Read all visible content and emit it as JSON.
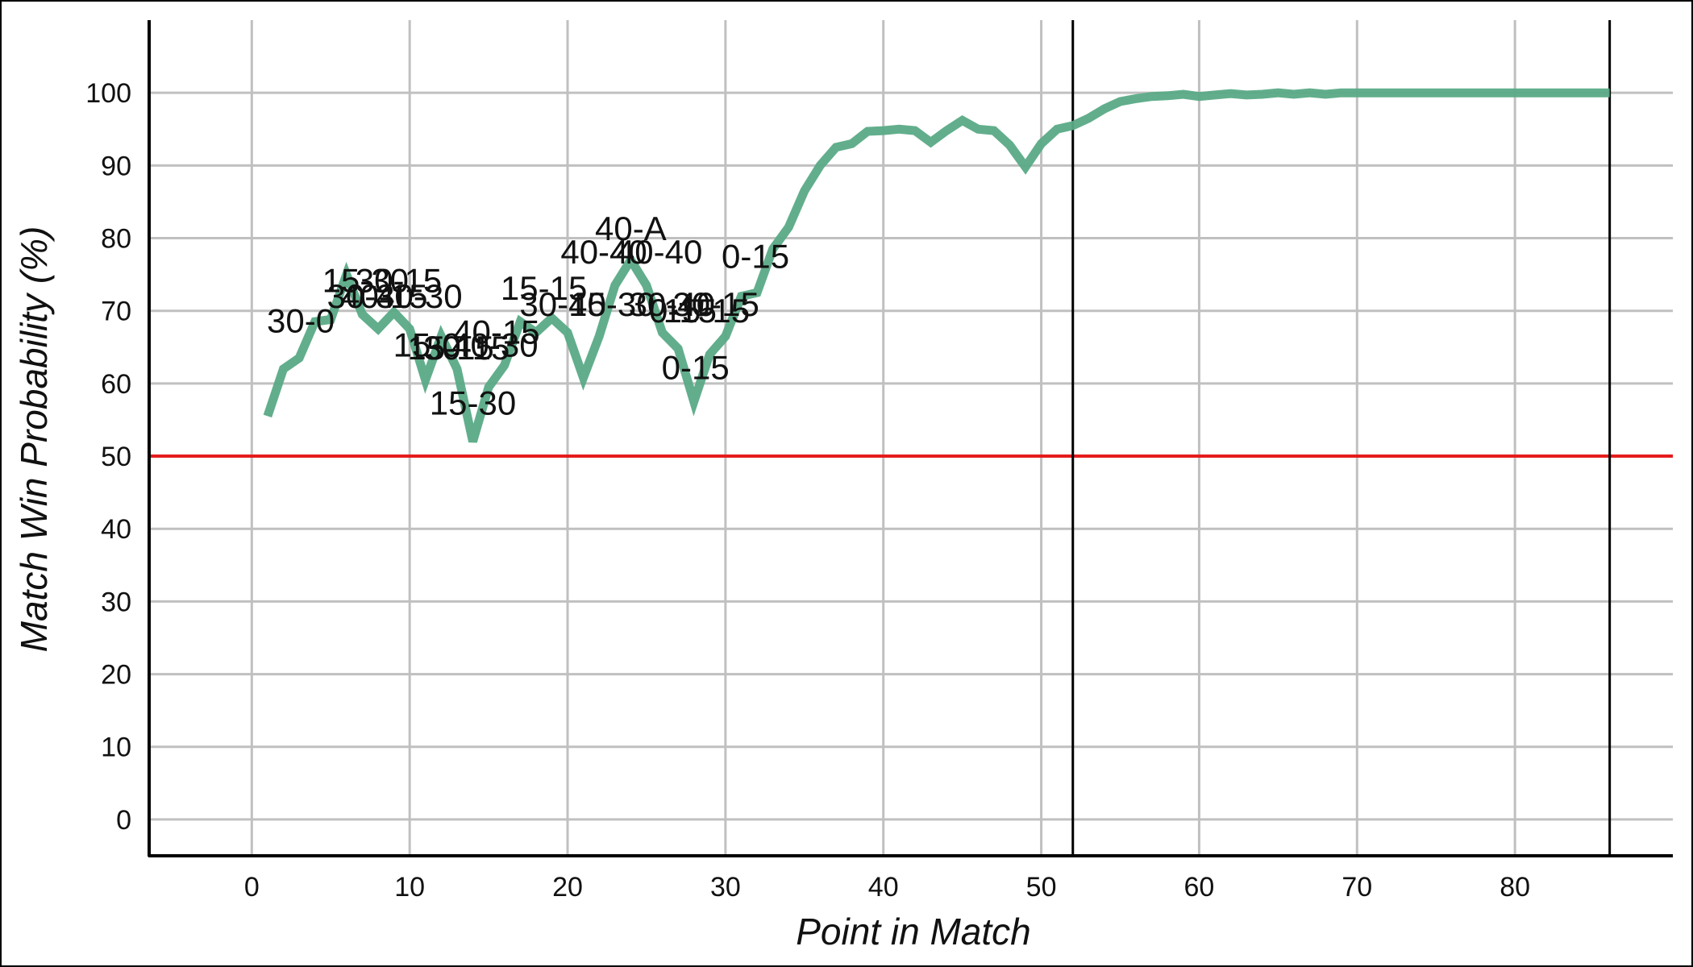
{
  "chart_data": {
    "type": "line",
    "title": "",
    "xlabel": "Point in Match",
    "ylabel": "Match Win Probability (%)",
    "xlim": [
      -6.5,
      90
    ],
    "ylim": [
      -5,
      110
    ],
    "xticks": [
      0,
      10,
      20,
      30,
      40,
      50,
      60,
      70,
      80
    ],
    "yticks": [
      0,
      10,
      20,
      30,
      40,
      50,
      60,
      70,
      80,
      90,
      100
    ],
    "grid": true,
    "legend": "none",
    "colors": {
      "series": "#5aaa86",
      "reference": "#e51c1c",
      "axis": "#000000",
      "grid": "#c0c0c0"
    },
    "reference_line": {
      "y": 50
    },
    "vertical_markers": [
      52,
      86
    ],
    "series": [
      {
        "x": [
          1,
          2,
          3,
          4,
          5,
          6,
          7,
          8,
          9,
          10,
          11,
          12,
          13,
          14,
          15,
          16,
          17,
          18,
          19,
          20,
          21,
          22,
          23,
          24,
          25,
          26,
          27,
          28,
          29,
          30,
          31,
          32,
          33,
          34,
          35,
          36,
          37,
          38,
          39,
          40,
          41,
          42,
          43,
          44,
          45,
          46,
          47,
          48,
          49,
          50,
          51,
          52,
          53,
          54,
          55,
          56,
          57,
          58,
          59,
          60,
          61,
          62,
          63,
          64,
          65,
          66,
          67,
          68,
          69,
          70,
          71,
          72,
          73,
          74,
          75,
          76,
          77,
          78,
          79,
          80,
          81,
          82,
          83,
          84,
          85,
          86
        ],
        "values": [
          55.5,
          62,
          63.5,
          68.5,
          68.8,
          75,
          69.5,
          67.5,
          69.8,
          67.5,
          60.5,
          66.5,
          62,
          52,
          59.5,
          62.5,
          68.5,
          67,
          69,
          67,
          60.8,
          66.5,
          73.5,
          77,
          73.5,
          67,
          64.8,
          57.5,
          64,
          66.5,
          72,
          72.5,
          78.5,
          81.5,
          86.5,
          90,
          92.5,
          93,
          94.7,
          94.8,
          95,
          94.8,
          93.2,
          94.8,
          96.2,
          95,
          94.8,
          92.8,
          89.8,
          93,
          95,
          95.5,
          96.5,
          97.8,
          98.8,
          99.2,
          99.5,
          99.6,
          99.8,
          99.5,
          99.7,
          99.9,
          99.7,
          99.8,
          100,
          99.8,
          100,
          99.8,
          100,
          100,
          100,
          100,
          100,
          100,
          100,
          100,
          100,
          100,
          100,
          100,
          100,
          100,
          100,
          100,
          100,
          100
        ]
      }
    ],
    "annotations": [
      {
        "text": "30-0",
        "x": 3.1,
        "y": 67
      },
      {
        "text": "15-30",
        "x": 7.2,
        "y": 72.6
      },
      {
        "text": "30-15",
        "x": 9.3,
        "y": 72.6
      },
      {
        "text": "30-30",
        "x": 7.5,
        "y": 70.4
      },
      {
        "text": "40-15",
        "x": 8.4,
        "y": 70.4
      },
      {
        "text": "40-30",
        "x": 10.6,
        "y": 70.4
      },
      {
        "text": "15-0",
        "x": 11.1,
        "y": 63.7
      },
      {
        "text": "15-15",
        "x": 12.6,
        "y": 63.3
      },
      {
        "text": "30-15",
        "x": 13.6,
        "y": 63.3
      },
      {
        "text": "40-15",
        "x": 15.5,
        "y": 65.5
      },
      {
        "text": "40-30",
        "x": 15.4,
        "y": 63.7
      },
      {
        "text": "15-30",
        "x": 14.0,
        "y": 55.7
      },
      {
        "text": "15-15",
        "x": 18.5,
        "y": 71.5
      },
      {
        "text": "30-15",
        "x": 19.7,
        "y": 69.3
      },
      {
        "text": "40-30",
        "x": 22.8,
        "y": 69.3
      },
      {
        "text": "40-40",
        "x": 22.3,
        "y": 76.5
      },
      {
        "text": "40-A",
        "x": 24.0,
        "y": 79.7
      },
      {
        "text": "40-40",
        "x": 25.8,
        "y": 76.5
      },
      {
        "text": "30-40",
        "x": 26.6,
        "y": 69.3
      },
      {
        "text": "0-15",
        "x": 27.3,
        "y": 68.4
      },
      {
        "text": "30-15",
        "x": 29.4,
        "y": 69.3
      },
      {
        "text": "15-15",
        "x": 28.8,
        "y": 68.4
      },
      {
        "text": "0-15",
        "x": 31.9,
        "y": 75.9
      },
      {
        "text": "0-15",
        "x": 28.1,
        "y": 60.6
      }
    ]
  }
}
